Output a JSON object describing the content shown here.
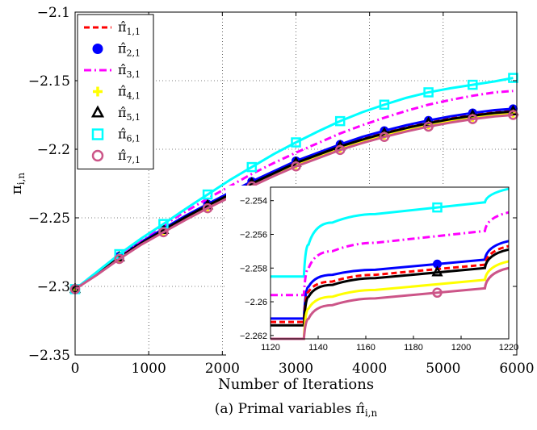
{
  "chart_data": [
    {
      "type": "line",
      "xlabel": "Number of Iterations",
      "ylabel_base": "π",
      "ylabel_sub": "i,n",
      "xlim": [
        0,
        6000
      ],
      "ylim": [
        -2.35,
        -2.1
      ],
      "grid": true,
      "legend_placement": "top-left",
      "x_ticks": [
        "0",
        "1000",
        "2000",
        "3000",
        "4000",
        "5000",
        "6000"
      ],
      "y_ticks": [
        "−2.1",
        "−2.15",
        "−2.2",
        "−2.25",
        "−2.3",
        "−2.35"
      ],
      "caption": "(a) Primal variables π̂",
      "caption_sub": "i,n",
      "series": [
        {
          "name": "π̂",
          "sub": "1,1",
          "color": "#ff0000",
          "dash": "7,4",
          "marker": "none",
          "x": [
            0,
            300,
            600,
            900,
            1200,
            1500,
            1800,
            2100,
            2400,
            2700,
            3000,
            3300,
            3600,
            3900,
            4200,
            4500,
            4800,
            5100,
            5400,
            5700,
            5950
          ],
          "y": [
            -2.302,
            -2.2905,
            -2.2785,
            -2.268,
            -2.2585,
            -2.249,
            -2.2405,
            -2.2325,
            -2.2245,
            -2.217,
            -2.2095,
            -2.2035,
            -2.1975,
            -2.192,
            -2.1875,
            -2.1835,
            -2.18,
            -2.177,
            -2.1745,
            -2.1725,
            -2.1715
          ]
        },
        {
          "name": "π̂",
          "sub": "2,1",
          "color": "#0000ff",
          "dash": "",
          "marker": "circle-filled",
          "x": [
            0,
            300,
            600,
            900,
            1200,
            1500,
            1800,
            2100,
            2400,
            2700,
            3000,
            3300,
            3600,
            3900,
            4200,
            4500,
            4800,
            5100,
            5400,
            5700,
            5950
          ],
          "y": [
            -2.302,
            -2.29,
            -2.278,
            -2.2675,
            -2.258,
            -2.2485,
            -2.24,
            -2.2315,
            -2.2235,
            -2.216,
            -2.2085,
            -2.2025,
            -2.1965,
            -2.191,
            -2.1865,
            -2.1825,
            -2.179,
            -2.176,
            -2.1735,
            -2.1715,
            -2.1705
          ]
        },
        {
          "name": "π̂",
          "sub": "3,1",
          "color": "#ff00ff",
          "dash": "9,4,2,4",
          "marker": "none",
          "x": [
            0,
            300,
            600,
            900,
            1200,
            1500,
            1800,
            2100,
            2400,
            2700,
            3000,
            3300,
            3600,
            3900,
            4200,
            4500,
            4800,
            5100,
            5400,
            5700,
            5950
          ],
          "y": [
            -2.302,
            -2.2895,
            -2.2775,
            -2.266,
            -2.2555,
            -2.2455,
            -2.236,
            -2.227,
            -2.218,
            -2.21,
            -2.2025,
            -2.1955,
            -2.1885,
            -2.1825,
            -2.177,
            -2.172,
            -2.1675,
            -2.164,
            -2.161,
            -2.1585,
            -2.1575
          ]
        },
        {
          "name": "π̂",
          "sub": "4,1",
          "color": "#ffff00",
          "dash": "",
          "marker": "plus",
          "x": [
            0,
            300,
            600,
            900,
            1200,
            1500,
            1800,
            2100,
            2400,
            2700,
            3000,
            3300,
            3600,
            3900,
            4200,
            4500,
            4800,
            5100,
            5400,
            5700,
            5950
          ],
          "y": [
            -2.302,
            -2.291,
            -2.2795,
            -2.269,
            -2.26,
            -2.251,
            -2.2425,
            -2.2345,
            -2.2265,
            -2.219,
            -2.2115,
            -2.2055,
            -2.1995,
            -2.1945,
            -2.19,
            -2.186,
            -2.1825,
            -2.1795,
            -2.177,
            -2.175,
            -2.174
          ]
        },
        {
          "name": "π̂",
          "sub": "5,1",
          "color": "#000000",
          "dash": "",
          "marker": "triangle",
          "x": [
            0,
            300,
            600,
            900,
            1200,
            1500,
            1800,
            2100,
            2400,
            2700,
            3000,
            3300,
            3600,
            3900,
            4200,
            4500,
            4800,
            5100,
            5400,
            5700,
            5950
          ],
          "y": [
            -2.302,
            -2.2905,
            -2.279,
            -2.2685,
            -2.259,
            -2.2495,
            -2.241,
            -2.233,
            -2.225,
            -2.2175,
            -2.21,
            -2.204,
            -2.198,
            -2.193,
            -2.1885,
            -2.1845,
            -2.181,
            -2.178,
            -2.1755,
            -2.1735,
            -2.1725
          ]
        },
        {
          "name": "π̂",
          "sub": "6,1",
          "color": "#00ffff",
          "dash": "",
          "marker": "square",
          "x": [
            0,
            300,
            600,
            900,
            1200,
            1500,
            1800,
            2100,
            2400,
            2700,
            3000,
            3300,
            3600,
            3900,
            4200,
            4500,
            4800,
            5100,
            5400,
            5700,
            5950
          ],
          "y": [
            -2.302,
            -2.2893,
            -2.2765,
            -2.265,
            -2.2545,
            -2.2435,
            -2.233,
            -2.2225,
            -2.213,
            -2.2035,
            -2.195,
            -2.187,
            -2.1795,
            -2.173,
            -2.1675,
            -2.1625,
            -2.1585,
            -2.1555,
            -2.153,
            -2.1505,
            -2.148
          ]
        },
        {
          "name": "π̂",
          "sub": "7,1",
          "color": "#cc5588",
          "dash": "",
          "marker": "circle-open",
          "x": [
            0,
            300,
            600,
            900,
            1200,
            1500,
            1800,
            2100,
            2400,
            2700,
            3000,
            3300,
            3600,
            3900,
            4200,
            4500,
            4800,
            5100,
            5400,
            5700,
            5950
          ],
          "y": [
            -2.302,
            -2.2915,
            -2.28,
            -2.2695,
            -2.2605,
            -2.2515,
            -2.243,
            -2.235,
            -2.227,
            -2.2195,
            -2.2125,
            -2.2065,
            -2.2005,
            -2.1955,
            -2.191,
            -2.187,
            -2.1835,
            -2.1805,
            -2.178,
            -2.176,
            -2.175
          ]
        }
      ]
    },
    {
      "type": "line",
      "role": "inset",
      "xlim": [
        1120,
        1220
      ],
      "ylim": [
        -2.2622,
        -2.2532
      ],
      "x_ticks": [
        "1120",
        "1140",
        "1160",
        "1180",
        "1200",
        "1220"
      ],
      "y_ticks": [
        "−2.254",
        "−2.256",
        "−2.258",
        "−2.26",
        "−2.262"
      ],
      "step_x": [
        1134,
        1211
      ],
      "series": [
        {
          "color": "#00ffff",
          "dash": "",
          "marker": "square",
          "marker_x": 1190,
          "y": [
            -2.2585,
            -2.2585,
            -2.2566,
            -2.2553,
            -2.2548,
            -2.2541,
            -2.2533
          ]
        },
        {
          "color": "#ff00ff",
          "dash": "9,4,2,4",
          "marker": "none",
          "y": [
            -2.2596,
            -2.2596,
            -2.258,
            -2.257,
            -2.2565,
            -2.2558,
            -2.2547
          ]
        },
        {
          "color": "#0000ff",
          "dash": "",
          "marker": "circle-filled",
          "marker_x": 1190,
          "y": [
            -2.261,
            -2.261,
            -2.2591,
            -2.2584,
            -2.2581,
            -2.2575,
            -2.2564
          ]
        },
        {
          "color": "#ff0000",
          "dash": "7,4",
          "marker": "none",
          "y": [
            -2.2612,
            -2.2612,
            -2.2594,
            -2.2588,
            -2.2584,
            -2.2578,
            -2.2567
          ]
        },
        {
          "color": "#000000",
          "dash": "",
          "marker": "triangle",
          "marker_x": 1190,
          "y": [
            -2.2614,
            -2.2614,
            -2.2597,
            -2.259,
            -2.2586,
            -2.258,
            -2.2569
          ]
        },
        {
          "color": "#ffff00",
          "dash": "",
          "marker": "plus",
          "y": [
            -2.2622,
            -2.2622,
            -2.2604,
            -2.2597,
            -2.2593,
            -2.2587,
            -2.2576
          ]
        },
        {
          "color": "#cc5588",
          "dash": "",
          "marker": "circle-open",
          "marker_x": 1190,
          "y": [
            -2.2622,
            -2.2622,
            -2.261,
            -2.2602,
            -2.2598,
            -2.2592,
            -2.258
          ]
        }
      ]
    }
  ]
}
